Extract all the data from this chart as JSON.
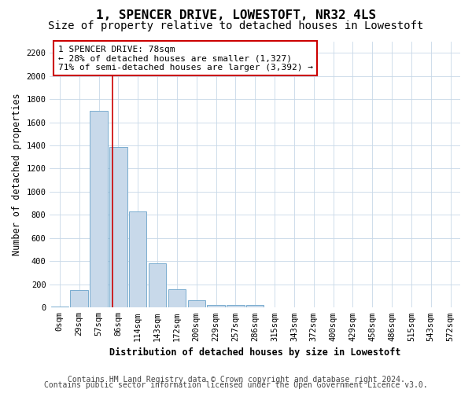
{
  "title": "1, SPENCER DRIVE, LOWESTOFT, NR32 4LS",
  "subtitle": "Size of property relative to detached houses in Lowestoft",
  "xlabel": "Distribution of detached houses by size in Lowestoft",
  "ylabel": "Number of detached properties",
  "bar_color": "#c8d9ea",
  "bar_edge_color": "#7aadcf",
  "background_color": "#ffffff",
  "grid_color": "#c8d8e8",
  "bin_labels": [
    "0sqm",
    "29sqm",
    "57sqm",
    "86sqm",
    "114sqm",
    "143sqm",
    "172sqm",
    "200sqm",
    "229sqm",
    "257sqm",
    "286sqm",
    "315sqm",
    "343sqm",
    "372sqm",
    "400sqm",
    "429sqm",
    "458sqm",
    "486sqm",
    "515sqm",
    "543sqm",
    "572sqm"
  ],
  "bar_values": [
    5,
    150,
    1700,
    1390,
    830,
    380,
    160,
    65,
    25,
    20,
    25,
    0,
    0,
    0,
    0,
    0,
    0,
    0,
    0,
    0,
    0
  ],
  "red_line_color": "#cc0000",
  "annotation_text": "1 SPENCER DRIVE: 78sqm\n← 28% of detached houses are smaller (1,327)\n71% of semi-detached houses are larger (3,392) →",
  "annotation_box_color": "#ffffff",
  "annotation_box_edge_color": "#cc0000",
  "ylim": [
    0,
    2300
  ],
  "yticks": [
    0,
    200,
    400,
    600,
    800,
    1000,
    1200,
    1400,
    1600,
    1800,
    2000,
    2200
  ],
  "footnote_line1": "Contains HM Land Registry data © Crown copyright and database right 2024.",
  "footnote_line2": "Contains public sector information licensed under the Open Government Licence v3.0.",
  "title_fontsize": 11.5,
  "subtitle_fontsize": 10,
  "axis_label_fontsize": 8.5,
  "tick_fontsize": 7.5,
  "annotation_fontsize": 8,
  "footnote_fontsize": 7
}
